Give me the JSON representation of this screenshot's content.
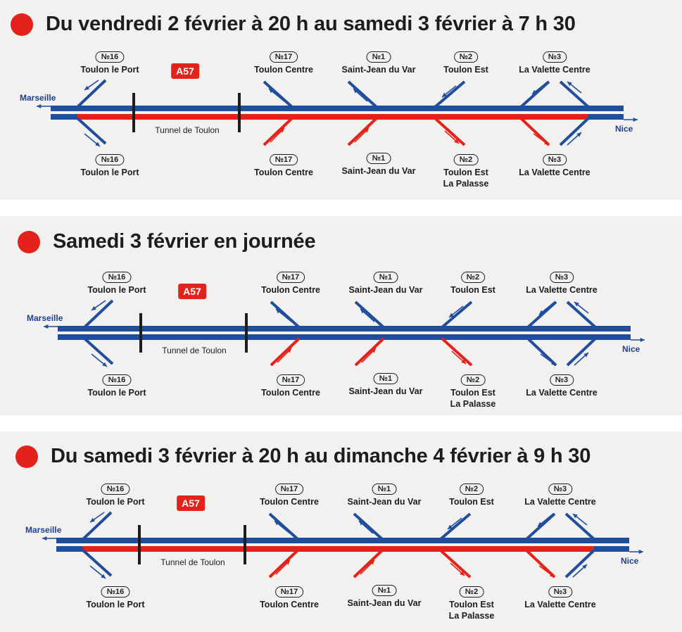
{
  "colors": {
    "blue": "#1f4e9c",
    "red": "#e3231b",
    "panel": "#f2f1ef",
    "text": "#1d1d1b"
  },
  "common": {
    "road": "A57",
    "tunnel": "Tunnel de Toulon",
    "west": "Marseille",
    "east": "Nice",
    "exits": {
      "e16": {
        "badge": "№16",
        "top": "Toulon le Port",
        "bottom": "Toulon le Port",
        "bottom2": ""
      },
      "e17": {
        "badge": "№17",
        "top": "Toulon Centre",
        "bottom": "Toulon Centre",
        "bottom2": ""
      },
      "e1": {
        "badge": "№1",
        "top": "Saint-Jean du Var",
        "bottom": "Saint-Jean du Var",
        "bottom2": ""
      },
      "e2": {
        "badge": "№2",
        "top": "Toulon Est",
        "bottom": "Toulon Est",
        "bottom2": "La Palasse"
      },
      "e3": {
        "badge": "№3",
        "top": "La Valette Centre",
        "bottom": "La Valette Centre",
        "bottom2": ""
      }
    }
  },
  "panels": [
    {
      "title": "Du vendredi 2 février à 20 h au samedi 3 février à 7 h 30",
      "red_carriageway": "full",
      "ramps_red": [
        "b17",
        "b1",
        "b2",
        "b3o"
      ]
    },
    {
      "title": "Samedi 3 février en journée",
      "red_carriageway": "none",
      "ramps_red": [
        "b17",
        "b1",
        "b2"
      ]
    },
    {
      "title": "Du samedi 3 février à 20 h au dimanche 4 février à 9 h 30",
      "red_carriageway": "full",
      "ramps_red": [
        "b17",
        "b1",
        "b2",
        "b3o"
      ]
    }
  ]
}
